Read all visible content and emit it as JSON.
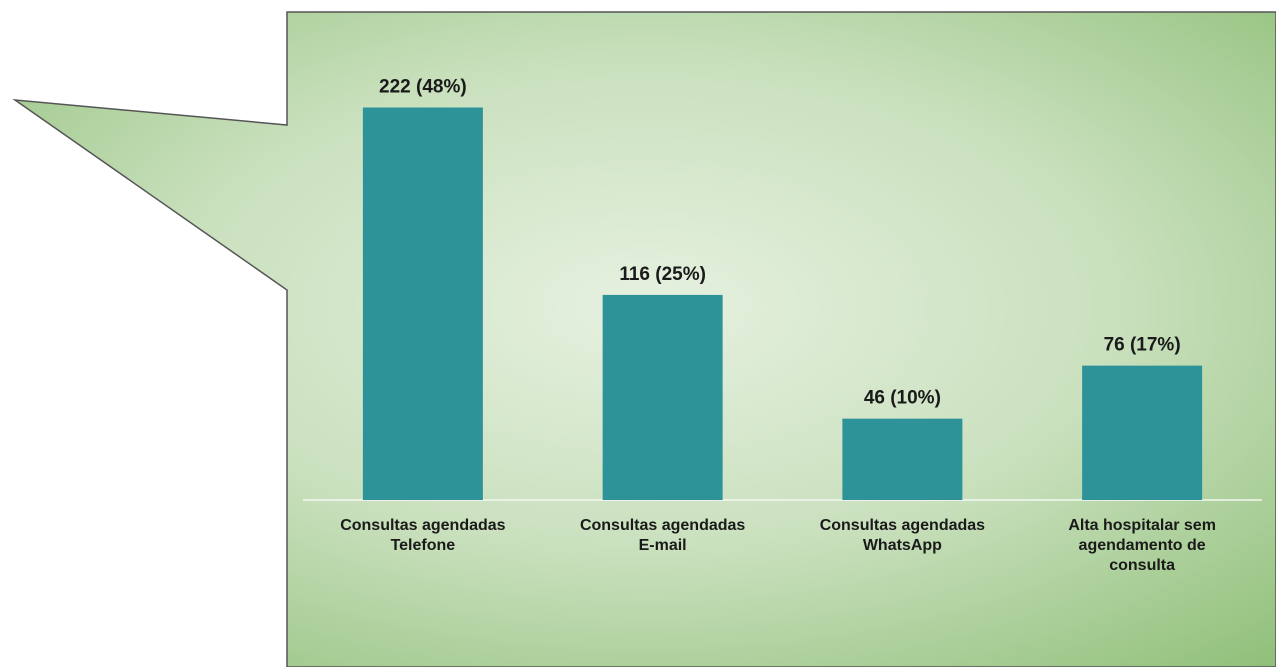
{
  "chart_data": {
    "type": "bar",
    "categories": [
      [
        "Consultas agendadas",
        "Telefone"
      ],
      [
        "Consultas agendadas",
        "E-mail"
      ],
      [
        "Consultas agendadas",
        "WhatsApp"
      ],
      [
        "Alta hospitalar sem",
        "agendamento de",
        "consulta"
      ]
    ],
    "values": [
      222,
      116,
      46,
      76
    ],
    "value_labels": [
      "222 (48%)",
      "116 (25%)",
      "46 (10%)",
      "76 (17%)"
    ],
    "color": "#2e9399",
    "ylim": [
      0,
      250
    ]
  }
}
